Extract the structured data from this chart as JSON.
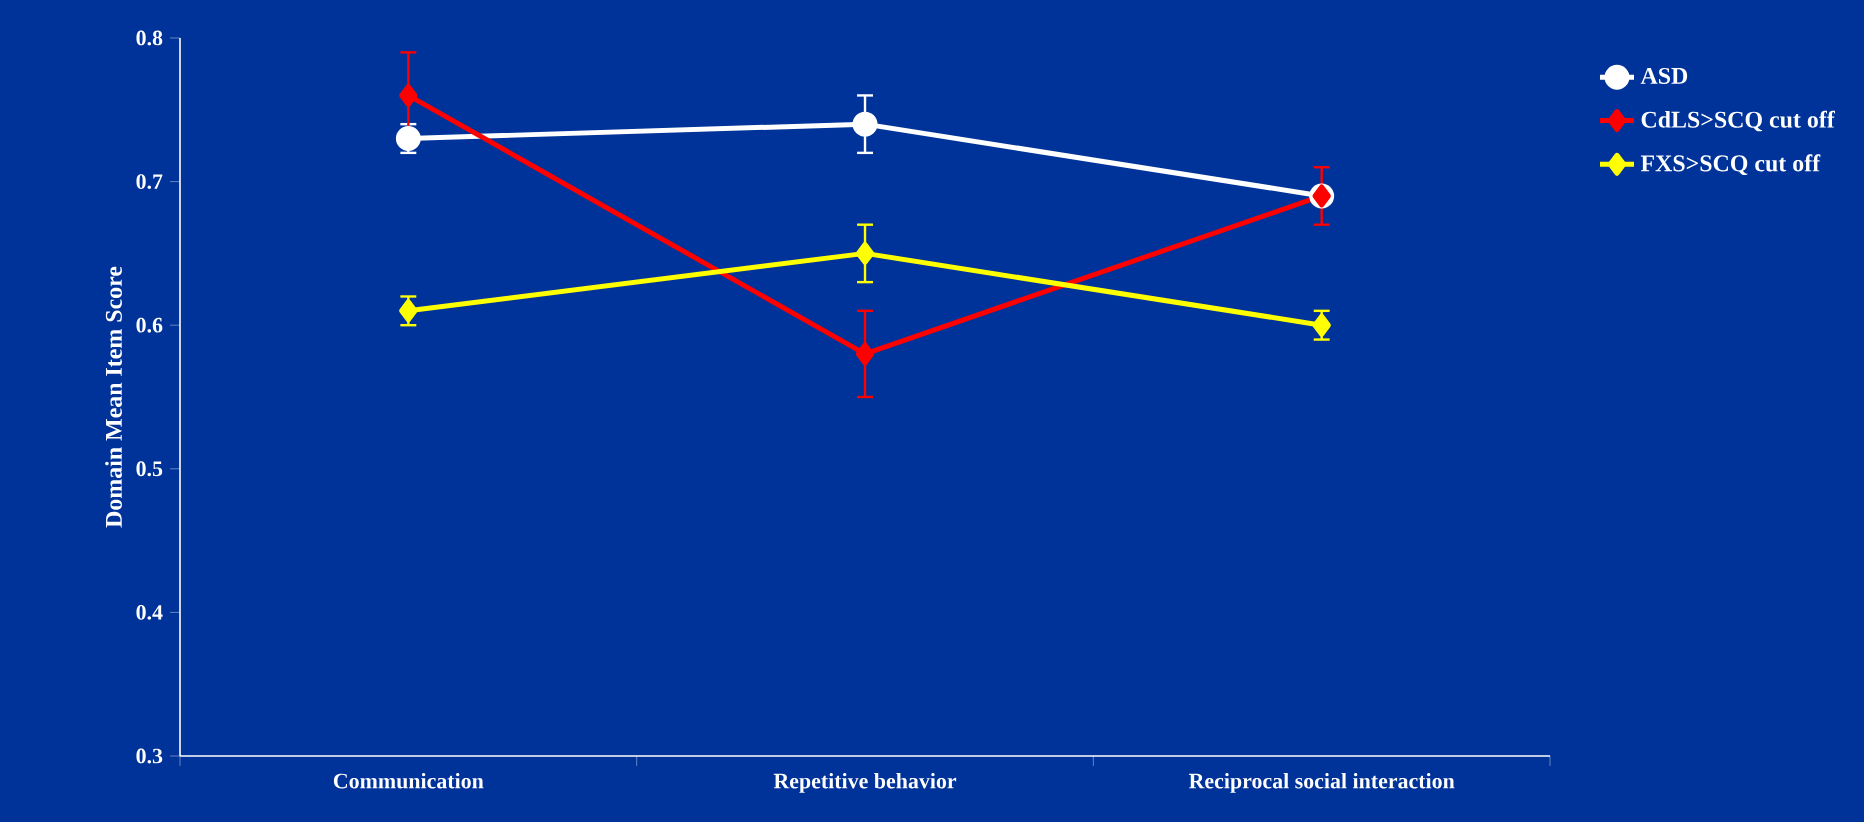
{
  "chart_data": {
    "type": "line",
    "ylabel": "Domain Mean Item Score",
    "categories": [
      "Communication",
      "Repetitive behavior",
      "Reciprocal social interaction"
    ],
    "series": [
      {
        "name": "ASD",
        "color": "#ffffff",
        "marker": "circle",
        "values": [
          0.73,
          0.74,
          0.69
        ],
        "errors": [
          0.01,
          0.02,
          null
        ]
      },
      {
        "name": "CdLS>SCQ cut off",
        "color": "#ff0000",
        "marker": "diamond",
        "values": [
          0.76,
          0.58,
          0.69
        ],
        "errors": [
          0.03,
          0.03,
          0.02
        ]
      },
      {
        "name": "FXS>SCQ cut off",
        "color": "#ffff00",
        "marker": "diamond",
        "values": [
          0.61,
          0.65,
          0.6
        ],
        "errors": [
          0.01,
          0.02,
          0.01
        ]
      }
    ],
    "ylim": [
      0.3,
      0.8
    ],
    "yticks": [
      0.3,
      0.4,
      0.5,
      0.6,
      0.7,
      0.8
    ],
    "grid": false,
    "legend": "right",
    "line_style": "solid"
  }
}
